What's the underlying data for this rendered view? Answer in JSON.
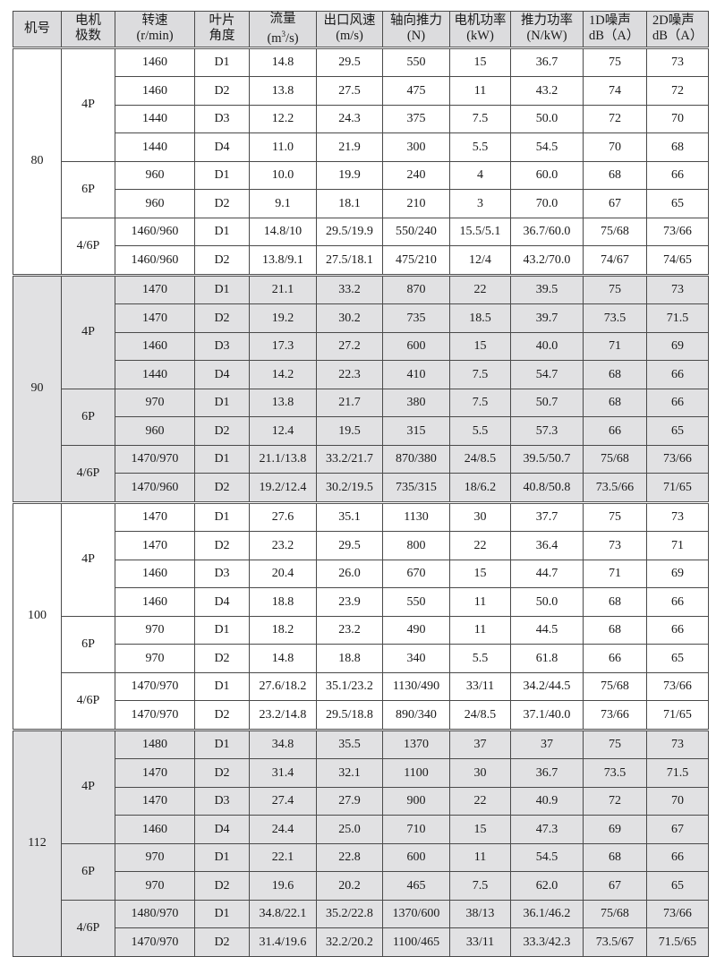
{
  "header": {
    "machine_no": "机号",
    "poles": [
      "电机",
      "极数"
    ],
    "speed": [
      "转速",
      "(r/min)"
    ],
    "blade_angle": [
      "叶片",
      "角度"
    ],
    "flow": [
      "流量",
      "(m",
      "3",
      "/s)"
    ],
    "outlet_velocity": [
      "出口风速",
      "(m/s)"
    ],
    "axial_thrust": [
      "轴向推力",
      "(N)"
    ],
    "motor_power": [
      "电机功率",
      "(kW)"
    ],
    "thrust_power": [
      "推力功率",
      "(N/kW)"
    ],
    "noise_1d": [
      "1D噪声",
      "dB（A）"
    ],
    "noise_2d": [
      "2D噪声",
      "dB（A）"
    ]
  },
  "sections": [
    {
      "machine": "80",
      "shade": "white",
      "groups": [
        {
          "poles": "4P",
          "rows": [
            [
              "1460",
              "D1",
              "14.8",
              "29.5",
              "550",
              "15",
              "36.7",
              "75",
              "73"
            ],
            [
              "1460",
              "D2",
              "13.8",
              "27.5",
              "475",
              "11",
              "43.2",
              "74",
              "72"
            ],
            [
              "1440",
              "D3",
              "12.2",
              "24.3",
              "375",
              "7.5",
              "50.0",
              "72",
              "70"
            ],
            [
              "1440",
              "D4",
              "11.0",
              "21.9",
              "300",
              "5.5",
              "54.5",
              "70",
              "68"
            ]
          ]
        },
        {
          "poles": "6P",
          "rows": [
            [
              "960",
              "D1",
              "10.0",
              "19.9",
              "240",
              "4",
              "60.0",
              "68",
              "66"
            ],
            [
              "960",
              "D2",
              "9.1",
              "18.1",
              "210",
              "3",
              "70.0",
              "67",
              "65"
            ]
          ]
        },
        {
          "poles": "4/6P",
          "rows": [
            [
              "1460/960",
              "D1",
              "14.8/10",
              "29.5/19.9",
              "550/240",
              "15.5/5.1",
              "36.7/60.0",
              "75/68",
              "73/66"
            ],
            [
              "1460/960",
              "D2",
              "13.8/9.1",
              "27.5/18.1",
              "475/210",
              "12/4",
              "43.2/70.0",
              "74/67",
              "74/65"
            ]
          ]
        }
      ]
    },
    {
      "machine": "90",
      "shade": "gray",
      "groups": [
        {
          "poles": "4P",
          "rows": [
            [
              "1470",
              "D1",
              "21.1",
              "33.2",
              "870",
              "22",
              "39.5",
              "75",
              "73"
            ],
            [
              "1470",
              "D2",
              "19.2",
              "30.2",
              "735",
              "18.5",
              "39.7",
              "73.5",
              "71.5"
            ],
            [
              "1460",
              "D3",
              "17.3",
              "27.2",
              "600",
              "15",
              "40.0",
              "71",
              "69"
            ],
            [
              "1440",
              "D4",
              "14.2",
              "22.3",
              "410",
              "7.5",
              "54.7",
              "68",
              "66"
            ]
          ]
        },
        {
          "poles": "6P",
          "rows": [
            [
              "970",
              "D1",
              "13.8",
              "21.7",
              "380",
              "7.5",
              "50.7",
              "68",
              "66"
            ],
            [
              "960",
              "D2",
              "12.4",
              "19.5",
              "315",
              "5.5",
              "57.3",
              "66",
              "65"
            ]
          ]
        },
        {
          "poles": "4/6P",
          "rows": [
            [
              "1470/970",
              "D1",
              "21.1/13.8",
              "33.2/21.7",
              "870/380",
              "24/8.5",
              "39.5/50.7",
              "75/68",
              "73/66"
            ],
            [
              "1470/960",
              "D2",
              "19.2/12.4",
              "30.2/19.5",
              "735/315",
              "18/6.2",
              "40.8/50.8",
              "73.5/66",
              "71/65"
            ]
          ]
        }
      ]
    },
    {
      "machine": "100",
      "shade": "white",
      "groups": [
        {
          "poles": "4P",
          "rows": [
            [
              "1470",
              "D1",
              "27.6",
              "35.1",
              "1130",
              "30",
              "37.7",
              "75",
              "73"
            ],
            [
              "1470",
              "D2",
              "23.2",
              "29.5",
              "800",
              "22",
              "36.4",
              "73",
              "71"
            ],
            [
              "1460",
              "D3",
              "20.4",
              "26.0",
              "670",
              "15",
              "44.7",
              "71",
              "69"
            ],
            [
              "1460",
              "D4",
              "18.8",
              "23.9",
              "550",
              "11",
              "50.0",
              "68",
              "66"
            ]
          ]
        },
        {
          "poles": "6P",
          "rows": [
            [
              "970",
              "D1",
              "18.2",
              "23.2",
              "490",
              "11",
              "44.5",
              "68",
              "66"
            ],
            [
              "970",
              "D2",
              "14.8",
              "18.8",
              "340",
              "5.5",
              "61.8",
              "66",
              "65"
            ]
          ]
        },
        {
          "poles": "4/6P",
          "rows": [
            [
              "1470/970",
              "D1",
              "27.6/18.2",
              "35.1/23.2",
              "1130/490",
              "33/11",
              "34.2/44.5",
              "75/68",
              "73/66"
            ],
            [
              "1470/970",
              "D2",
              "23.2/14.8",
              "29.5/18.8",
              "890/340",
              "24/8.5",
              "37.1/40.0",
              "73/66",
              "71/65"
            ]
          ]
        }
      ]
    },
    {
      "machine": "112",
      "shade": "gray",
      "groups": [
        {
          "poles": "4P",
          "rows": [
            [
              "1480",
              "D1",
              "34.8",
              "35.5",
              "1370",
              "37",
              "37",
              "75",
              "73"
            ],
            [
              "1470",
              "D2",
              "31.4",
              "32.1",
              "1100",
              "30",
              "36.7",
              "73.5",
              "71.5"
            ],
            [
              "1470",
              "D3",
              "27.4",
              "27.9",
              "900",
              "22",
              "40.9",
              "72",
              "70"
            ],
            [
              "1460",
              "D4",
              "24.4",
              "25.0",
              "710",
              "15",
              "47.3",
              "69",
              "67"
            ]
          ]
        },
        {
          "poles": "6P",
          "rows": [
            [
              "970",
              "D1",
              "22.1",
              "22.8",
              "600",
              "11",
              "54.5",
              "68",
              "66"
            ],
            [
              "970",
              "D2",
              "19.6",
              "20.2",
              "465",
              "7.5",
              "62.0",
              "67",
              "65"
            ]
          ]
        },
        {
          "poles": "4/6P",
          "rows": [
            [
              "1480/970",
              "D1",
              "34.8/22.1",
              "35.2/22.8",
              "1370/600",
              "38/13",
              "36.1/46.2",
              "75/68",
              "73/66"
            ],
            [
              "1470/970",
              "D2",
              "31.4/19.6",
              "32.2/20.2",
              "1100/465",
              "33/11",
              "33.3/42.3",
              "73.5/67",
              "71.5/65"
            ]
          ]
        }
      ]
    }
  ]
}
